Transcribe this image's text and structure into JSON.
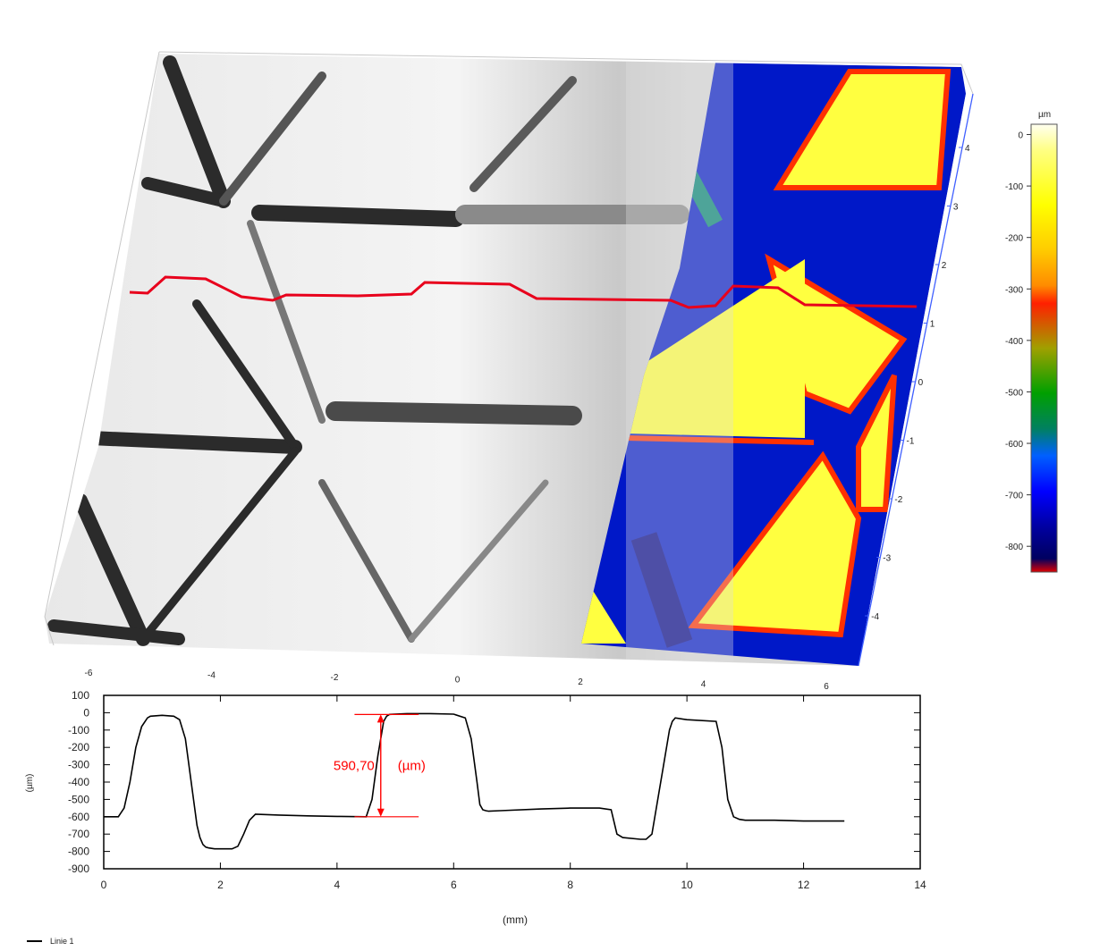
{
  "surface_view": {
    "colorbar": {
      "unit": "µm",
      "ticks": [
        0,
        -100,
        -200,
        -300,
        -400,
        -500,
        -600,
        -700,
        -800
      ],
      "range": [
        -850,
        20
      ],
      "stops": [
        "#fffff0",
        "#ffff80",
        "#ffff00",
        "#ffcc00",
        "#ff8c00",
        "#ff2000",
        "#a0a000",
        "#00a000",
        "#008060",
        "#0060ff",
        "#0000ff",
        "#0000a0",
        "#000060",
        "#e00000"
      ]
    },
    "x_axis_ticks": [
      "-6",
      "-4",
      "-2",
      "0",
      "2",
      "4",
      "6"
    ],
    "y_axis_ticks": [
      "4",
      "3",
      "2",
      "1",
      "0",
      "-1",
      "-2",
      "-3",
      "-4"
    ],
    "profile_line_color": "#e8001c",
    "palette": {
      "gray_light": "#f0f0f0",
      "gray_dark": "#202020",
      "blue": "#0018c8",
      "yellow": "#ffff40"
    }
  },
  "chart_data": {
    "type": "line",
    "xlabel": "(mm)",
    "ylabel": "(µm)",
    "xlim": [
      0,
      14
    ],
    "ylim": [
      -900,
      100
    ],
    "x_ticks": [
      0,
      2,
      4,
      6,
      8,
      10,
      12,
      14
    ],
    "y_ticks": [
      100,
      0,
      -100,
      -200,
      -300,
      -400,
      -500,
      -600,
      -700,
      -800,
      -900
    ],
    "grid": false,
    "legend_position": "bottom-left",
    "series": [
      {
        "name": "Linie 1",
        "color": "#000000",
        "x": [
          0.0,
          0.25,
          0.35,
          0.45,
          0.55,
          0.65,
          0.75,
          0.8,
          1.0,
          1.2,
          1.3,
          1.4,
          1.5,
          1.6,
          1.65,
          1.7,
          1.75,
          1.8,
          1.9,
          2.0,
          2.1,
          2.2,
          2.3,
          2.4,
          2.5,
          2.6,
          3.0,
          3.5,
          4.0,
          4.5,
          4.6,
          4.7,
          4.8,
          4.85,
          4.9,
          5.2,
          5.6,
          6.0,
          6.2,
          6.3,
          6.4,
          6.45,
          6.5,
          6.55,
          6.6,
          6.8,
          7.5,
          8.0,
          8.5,
          8.7,
          8.8,
          8.9,
          9.2,
          9.3,
          9.4,
          9.6,
          9.7,
          9.75,
          9.8,
          10.0,
          10.5,
          10.6,
          10.7,
          10.8,
          10.9,
          11.0,
          11.5,
          12.0,
          12.5,
          12.7
        ],
        "y": [
          -600,
          -600,
          -550,
          -400,
          -200,
          -80,
          -30,
          -20,
          -15,
          -20,
          -40,
          -150,
          -400,
          -650,
          -720,
          -760,
          -775,
          -780,
          -785,
          -785,
          -785,
          -785,
          -770,
          -700,
          -620,
          -585,
          -590,
          -595,
          -598,
          -600,
          -500,
          -250,
          -50,
          -20,
          -10,
          -5,
          -5,
          -8,
          -30,
          -150,
          -400,
          -530,
          -560,
          -565,
          -568,
          -565,
          -555,
          -550,
          -550,
          -560,
          -700,
          -720,
          -730,
          -730,
          -700,
          -300,
          -100,
          -50,
          -30,
          -40,
          -50,
          -200,
          -500,
          -600,
          -615,
          -620,
          -620,
          -625,
          -625,
          -625
        ]
      }
    ],
    "annotations": [
      {
        "text": "590,70",
        "unit": "(µm)",
        "x": 4.75,
        "y_top": -10,
        "y_bottom": -600,
        "line_x_range": [
          4.3,
          5.4
        ],
        "color": "#ff0000"
      }
    ]
  }
}
